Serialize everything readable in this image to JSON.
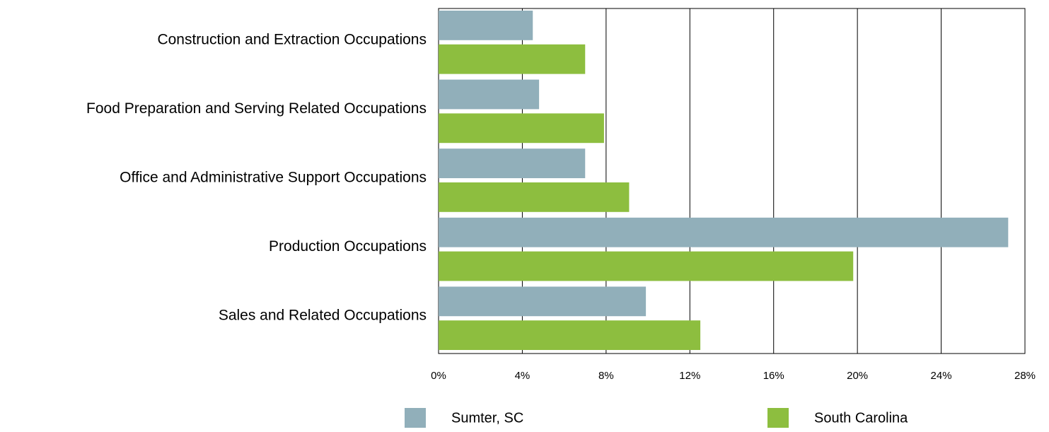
{
  "chart_data": {
    "type": "hbar",
    "categories": [
      "Construction and Extraction Occupations",
      "Food Preparation and Serving Related Occupations",
      "Office and Administrative Support Occupations",
      "Production Occupations",
      "Sales and Related Occupations"
    ],
    "series": [
      {
        "name": "Sumter, SC",
        "color": "#91afba",
        "values": [
          4.5,
          4.8,
          7.0,
          27.2,
          9.9
        ]
      },
      {
        "name": "South Carolina",
        "color": "#8dbe3f",
        "values": [
          7.0,
          7.9,
          9.1,
          19.8,
          12.5
        ]
      }
    ],
    "xlim": [
      0,
      28
    ],
    "xticks": [
      {
        "value": 0,
        "label": "0%"
      },
      {
        "value": 4,
        "label": "4%"
      },
      {
        "value": 8,
        "label": "8%"
      },
      {
        "value": 12,
        "label": "12%"
      },
      {
        "value": 16,
        "label": "16%"
      },
      {
        "value": 20,
        "label": "20%"
      },
      {
        "value": 24,
        "label": "24%"
      },
      {
        "value": 28,
        "label": "28%"
      }
    ],
    "grid": true
  }
}
